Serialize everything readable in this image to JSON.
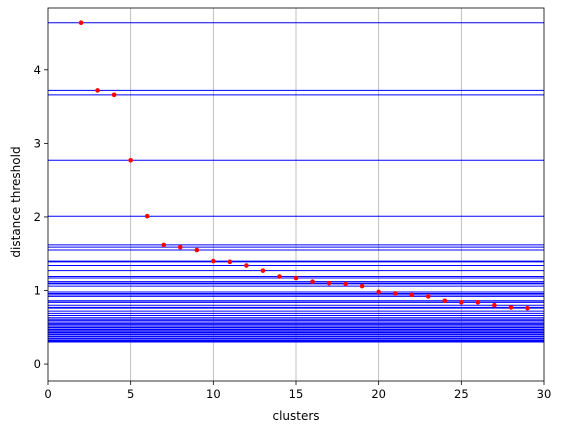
{
  "chart_data": {
    "type": "scatter",
    "title": "",
    "xlabel": "clusters",
    "ylabel": "distance threshold",
    "xlim": [
      0,
      30
    ],
    "ylim": [
      -0.23,
      4.84
    ],
    "xticks": [
      0,
      5,
      10,
      15,
      20,
      25,
      30
    ],
    "yticks": [
      0,
      1,
      2,
      3,
      4
    ],
    "grid": {
      "x": true,
      "y": false
    },
    "series": [
      {
        "marker_color": "#ff0000",
        "x": [
          2,
          3,
          4,
          5,
          6,
          7,
          8,
          9,
          10,
          11,
          12,
          13,
          14,
          15,
          16,
          17,
          18,
          19,
          20,
          21,
          22,
          23,
          24,
          25,
          26,
          27,
          28,
          29
        ],
        "y": [
          4.64,
          3.72,
          3.66,
          2.77,
          2.01,
          1.62,
          1.59,
          1.55,
          1.4,
          1.39,
          1.34,
          1.27,
          1.19,
          1.17,
          1.12,
          1.1,
          1.09,
          1.06,
          0.98,
          0.96,
          0.94,
          0.92,
          0.86,
          0.84,
          0.84,
          0.8,
          0.77,
          0.76
        ]
      }
    ],
    "threshold_lines": {
      "color": "#0000ff",
      "values": [
        4.64,
        3.72,
        3.66,
        2.77,
        2.01,
        1.62,
        1.59,
        1.55,
        1.4,
        1.39,
        1.34,
        1.27,
        1.19,
        1.17,
        1.12,
        1.1,
        1.09,
        1.06,
        0.98,
        0.96,
        0.94,
        0.92,
        0.86,
        0.84,
        0.84,
        0.8,
        0.77,
        0.76,
        0.72,
        0.69,
        0.66,
        0.63,
        0.61,
        0.59,
        0.57,
        0.55,
        0.54,
        0.52,
        0.5,
        0.49,
        0.47,
        0.46,
        0.44,
        0.43,
        0.41,
        0.4,
        0.38,
        0.37,
        0.35,
        0.34,
        0.32,
        0.31,
        0.3
      ]
    }
  }
}
